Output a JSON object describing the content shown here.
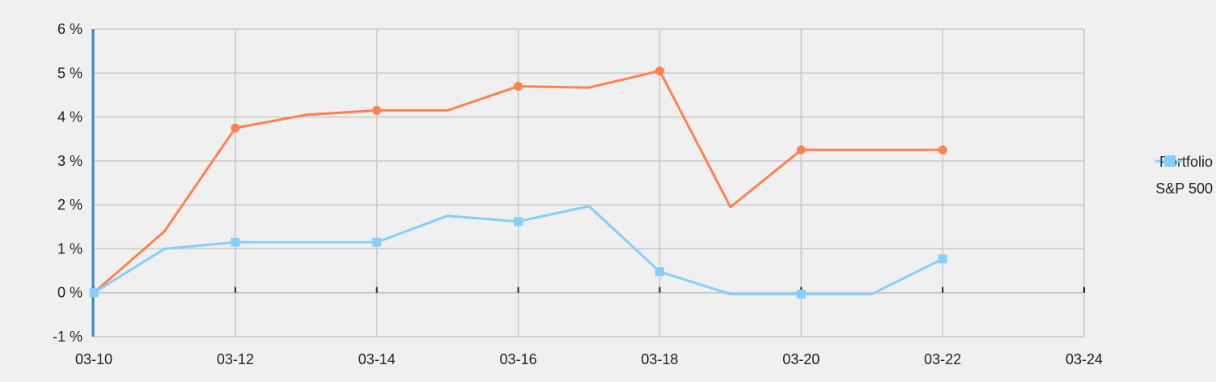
{
  "chart_data": {
    "type": "line",
    "x": [
      "03-10",
      "03-11",
      "03-12",
      "03-13",
      "03-14",
      "03-15",
      "03-16",
      "03-17",
      "03-18",
      "03-19",
      "03-20",
      "03-21",
      "03-22"
    ],
    "x_tick_labels": [
      "03-10",
      "03-12",
      "03-14",
      "03-16",
      "03-18",
      "03-20",
      "03-22",
      "03-24"
    ],
    "y_tick_labels": [
      "-1 %",
      "0 %",
      "1 %",
      "2 %",
      "3 %",
      "4 %",
      "5 %",
      "6 %"
    ],
    "ylim": [
      -1,
      6
    ],
    "xlim": [
      "03-10",
      "03-24"
    ],
    "grid": true,
    "legend_position": "right",
    "series": [
      {
        "name": "Portfolio",
        "color": "#ff8150",
        "marker": "circle",
        "values": [
          0,
          1.4,
          3.75,
          4.05,
          4.15,
          4.15,
          4.7,
          4.67,
          5.05,
          1.95,
          3.25,
          3.25,
          3.25
        ],
        "marker_indices": [
          0,
          2,
          4,
          6,
          8,
          10,
          12
        ]
      },
      {
        "name": "S&P 500",
        "color": "#87cefa",
        "marker": "square",
        "values": [
          0,
          1.0,
          1.15,
          1.15,
          1.15,
          1.75,
          1.62,
          1.97,
          0.48,
          -0.03,
          -0.03,
          -0.03,
          0.77
        ],
        "marker_indices": [
          0,
          2,
          4,
          6,
          8,
          10,
          12
        ]
      }
    ]
  }
}
